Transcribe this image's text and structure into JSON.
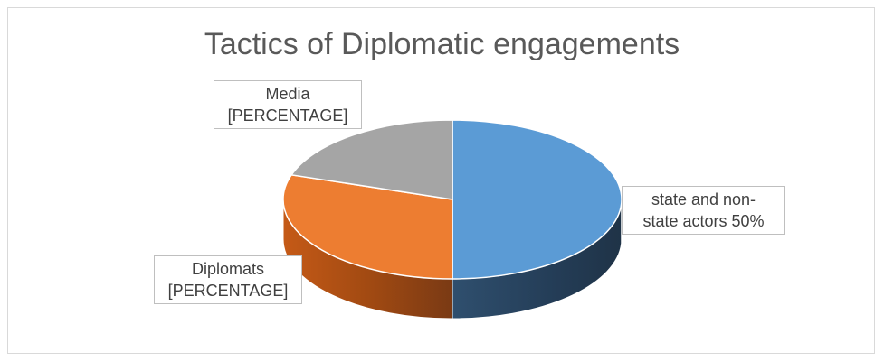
{
  "chart_data": {
    "type": "pie",
    "title": "Tactics of  Diplomatic engagements",
    "style": "3d",
    "slices": [
      {
        "name": "state and non-state actors",
        "value": 50,
        "color": "#5b9bd5",
        "label_lines": [
          "state and non-",
          "state actors 50%"
        ]
      },
      {
        "name": "Diplomats",
        "value": 30,
        "color": "#ed7d31",
        "label_lines": [
          "Diplomats",
          "[PERCENTAGE]"
        ]
      },
      {
        "name": "Media",
        "value": 20,
        "color": "#a5a5a5",
        "label_lines": [
          "Media",
          "[PERCENTAGE]"
        ]
      }
    ]
  }
}
